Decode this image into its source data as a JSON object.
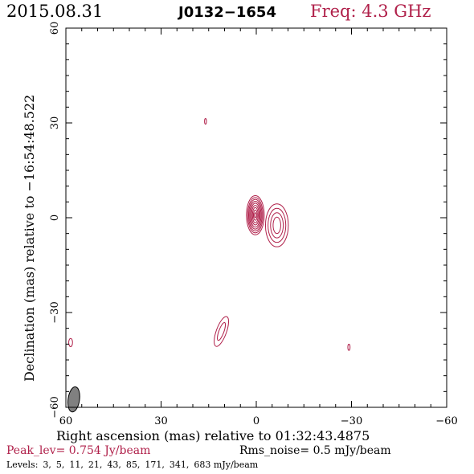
{
  "header": {
    "date": "2015.08.31",
    "source": "J0132−1654",
    "frequency": "Freq: 4.3 GHz"
  },
  "footer": {
    "peak": "Peak_lev=  0.754 Jy/beam",
    "rms": "Rms_noise=  0.5 mJy/beam",
    "levels_label": "Levels:",
    "levels": [
      "3,",
      "5,",
      "11,",
      "21,",
      "43,",
      "85,",
      "171,",
      "341,",
      "683 mJy/beam"
    ]
  },
  "chart_data": {
    "type": "contour",
    "xlabel": "Right ascension (mas) relative to 01:32:43.4875",
    "ylabel": "Declination (mas) relative to −16:54:48.522",
    "xlim": [
      60,
      -60
    ],
    "ylim": [
      -60,
      60
    ],
    "x_ticks": [
      "60",
      "30",
      "0",
      "−30",
      "−60"
    ],
    "y_ticks": [
      "−60",
      "−30",
      "0",
      "30",
      "60"
    ],
    "x_tick_values": [
      60,
      30,
      0,
      -30,
      -60
    ],
    "y_tick_values": [
      -60,
      -30,
      0,
      30,
      60
    ],
    "contour_color": "#b0204a",
    "beam_color": "#808080",
    "levels_mJy_per_beam": [
      3,
      5,
      11,
      21,
      43,
      85,
      171,
      341,
      683
    ],
    "components": [
      {
        "name": "core",
        "ra": 0.3,
        "dec": 0.8,
        "rings": [
          [
            2.8,
            6.2
          ],
          [
            2.4,
            5.6
          ],
          [
            2.1,
            5.0
          ],
          [
            1.8,
            4.4
          ],
          [
            1.5,
            3.8
          ],
          [
            1.2,
            3.1
          ],
          [
            0.9,
            2.4
          ],
          [
            0.6,
            1.6
          ],
          [
            0.3,
            0.8
          ]
        ]
      },
      {
        "name": "jet-knot",
        "ra": -6.5,
        "dec": -2.4,
        "rings": [
          [
            3.6,
            6.8
          ],
          [
            2.8,
            5.4
          ],
          [
            2.0,
            4.0
          ],
          [
            1.2,
            2.6
          ]
        ]
      },
      {
        "name": "south-feature",
        "ra": 11.0,
        "dec": -36.0,
        "rings": [
          [
            1.6,
            5.0
          ],
          [
            0.8,
            3.0
          ]
        ],
        "angle": 20
      },
      {
        "name": "north-spot",
        "ra": 16.0,
        "dec": 30.5,
        "rings": [
          [
            0.3,
            0.9
          ]
        ]
      },
      {
        "name": "west-spot",
        "ra": -29.2,
        "dec": -41.0,
        "rings": [
          [
            0.35,
            1.0
          ]
        ]
      },
      {
        "name": "east-spot",
        "ra": 58.5,
        "dec": -39.5,
        "rings": [
          [
            0.6,
            1.3
          ]
        ]
      }
    ],
    "beam": {
      "ra": 57.5,
      "dec": -57.5,
      "major": 4.0,
      "minor": 1.8,
      "angle": 8
    }
  }
}
